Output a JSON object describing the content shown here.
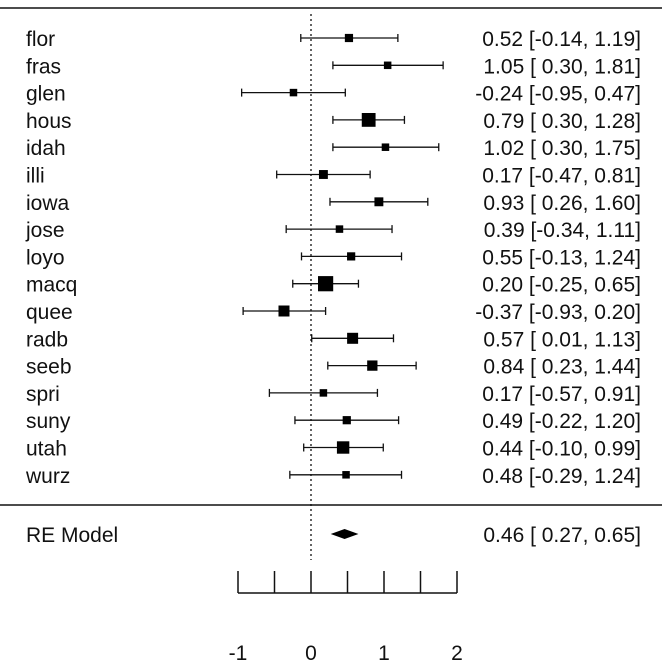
{
  "chart_data": {
    "type": "forest",
    "title": "",
    "xlabel": "",
    "xlim": [
      -1,
      2
    ],
    "xticks": [
      "-1",
      "0",
      "1",
      "2"
    ],
    "xtick_values": [
      -1,
      -0.5,
      0,
      0.5,
      1,
      1.5,
      2
    ],
    "reference_line": 0,
    "studies": [
      {
        "label": "flor",
        "estimate": 0.52,
        "lower": -0.14,
        "upper": 1.19,
        "text": "0.52 [-0.14, 1.19]",
        "weight": 3
      },
      {
        "label": "fras",
        "estimate": 1.05,
        "lower": 0.3,
        "upper": 1.81,
        "text": "1.05 [ 0.30, 1.81]",
        "weight": 2.5
      },
      {
        "label": "glen",
        "estimate": -0.24,
        "lower": -0.95,
        "upper": 0.47,
        "text": "-0.24 [-0.95, 0.47]",
        "weight": 2.5
      },
      {
        "label": "hous",
        "estimate": 0.79,
        "lower": 0.3,
        "upper": 1.28,
        "text": "0.79 [ 0.30, 1.28]",
        "weight": 7
      },
      {
        "label": "idah",
        "estimate": 1.02,
        "lower": 0.3,
        "upper": 1.75,
        "text": "1.02 [ 0.30, 1.75]",
        "weight": 2.5
      },
      {
        "label": "illi",
        "estimate": 0.17,
        "lower": -0.47,
        "upper": 0.81,
        "text": "0.17 [-0.47, 0.81]",
        "weight": 3.5
      },
      {
        "label": "iowa",
        "estimate": 0.93,
        "lower": 0.26,
        "upper": 1.6,
        "text": "0.93 [ 0.26, 1.60]",
        "weight": 3.5
      },
      {
        "label": "jose",
        "estimate": 0.39,
        "lower": -0.34,
        "upper": 1.11,
        "text": "0.39 [-0.34, 1.11]",
        "weight": 2.5
      },
      {
        "label": "loyo",
        "estimate": 0.55,
        "lower": -0.13,
        "upper": 1.24,
        "text": "0.55 [-0.13, 1.24]",
        "weight": 3
      },
      {
        "label": "macq",
        "estimate": 0.2,
        "lower": -0.25,
        "upper": 0.65,
        "text": "0.20 [-0.25, 0.65]",
        "weight": 8
      },
      {
        "label": "quee",
        "estimate": -0.37,
        "lower": -0.93,
        "upper": 0.2,
        "text": "-0.37 [-0.93, 0.20]",
        "weight": 5
      },
      {
        "label": "radb",
        "estimate": 0.57,
        "lower": 0.01,
        "upper": 1.13,
        "text": "0.57 [ 0.01, 1.13]",
        "weight": 5
      },
      {
        "label": "seeb",
        "estimate": 0.84,
        "lower": 0.23,
        "upper": 1.44,
        "text": "0.84 [ 0.23, 1.44]",
        "weight": 4.5
      },
      {
        "label": "spri",
        "estimate": 0.17,
        "lower": -0.57,
        "upper": 0.91,
        "text": "0.17 [-0.57, 0.91]",
        "weight": 2.5
      },
      {
        "label": "suny",
        "estimate": 0.49,
        "lower": -0.22,
        "upper": 1.2,
        "text": "0.49 [-0.22, 1.20]",
        "weight": 3
      },
      {
        "label": "utah",
        "estimate": 0.44,
        "lower": -0.1,
        "upper": 0.99,
        "text": "0.44 [-0.10, 0.99]",
        "weight": 6
      },
      {
        "label": "wurz",
        "estimate": 0.48,
        "lower": -0.29,
        "upper": 1.24,
        "text": "0.48 [-0.29, 1.24]",
        "weight": 2.5
      }
    ],
    "summary": {
      "label": "RE Model",
      "estimate": 0.46,
      "lower": 0.27,
      "upper": 0.65,
      "text": "0.46 [ 0.27, 0.65]"
    }
  }
}
